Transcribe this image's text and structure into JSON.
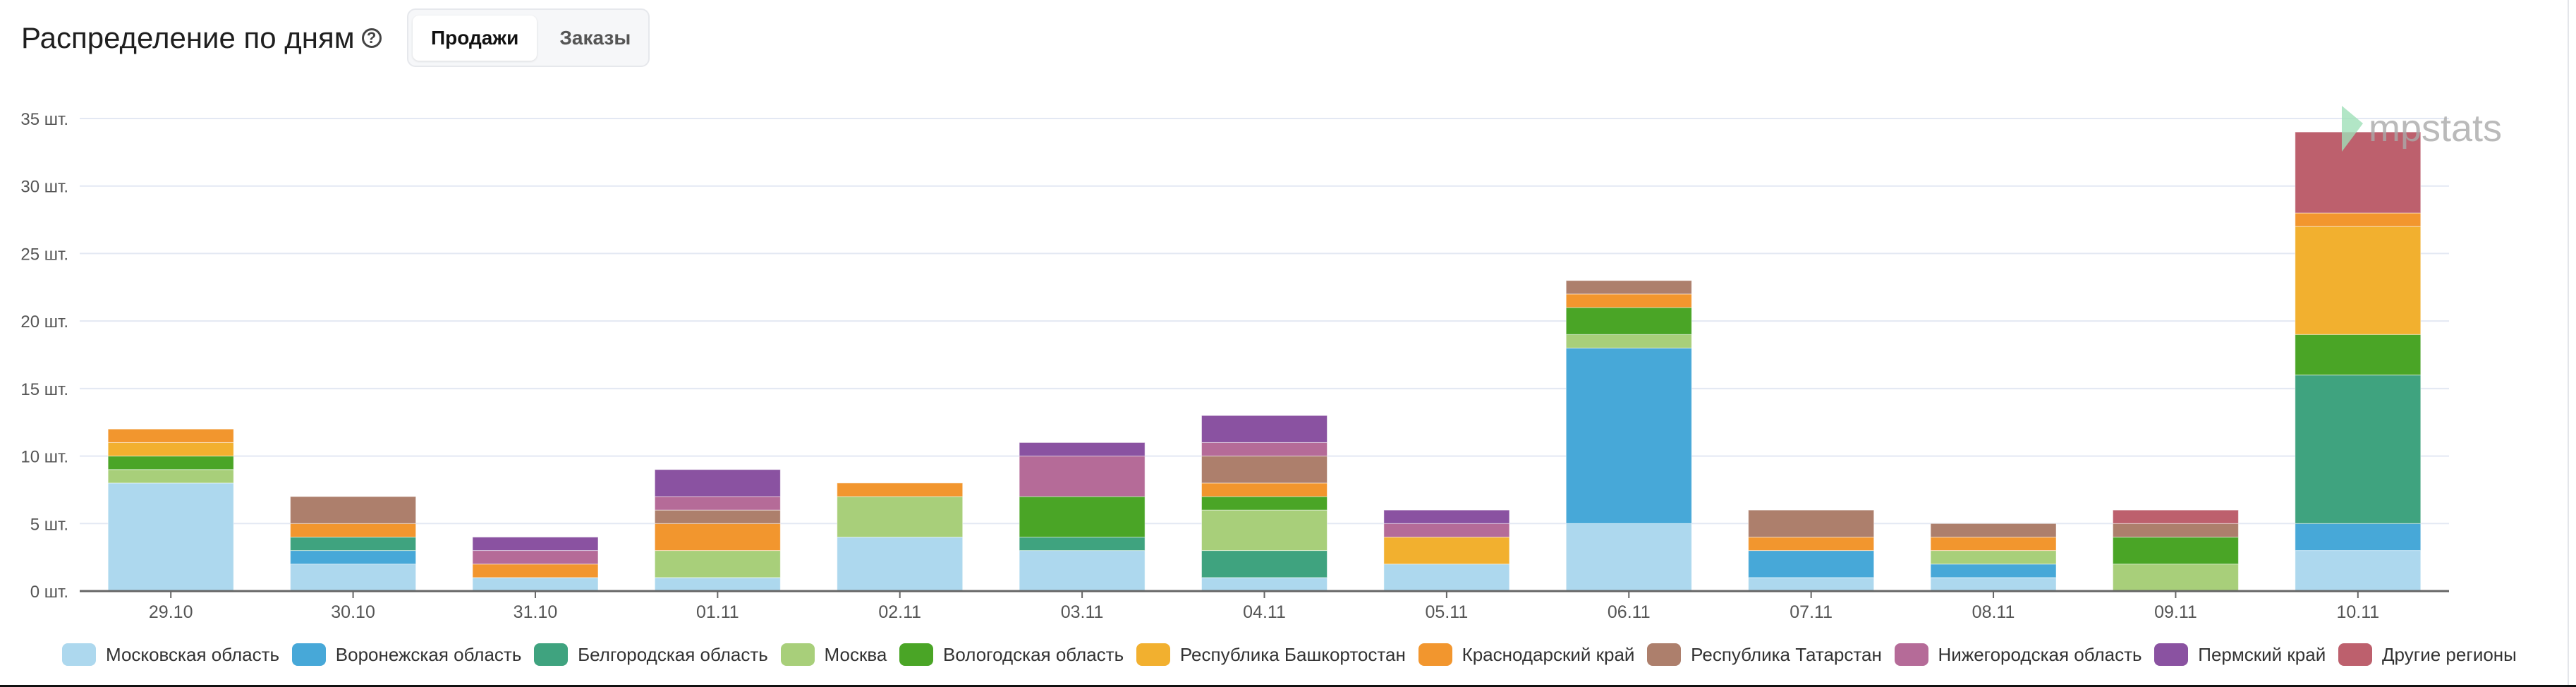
{
  "header": {
    "title": "Распределение по дням",
    "help_icon": "question-circle-icon"
  },
  "tabs": [
    {
      "label": "Продажи",
      "active": true
    },
    {
      "label": "Заказы",
      "active": false
    }
  ],
  "watermark": "mpstats",
  "chart_data": {
    "type": "bar",
    "stacked": true,
    "ylim": [
      0,
      35
    ],
    "yticks": [
      "0 шт.",
      "5 шт.",
      "10 шт.",
      "15 шт.",
      "20 шт.",
      "25 шт.",
      "30 шт.",
      "35 шт."
    ],
    "ytick_values": [
      0,
      5,
      10,
      15,
      20,
      25,
      30,
      35
    ],
    "grid": true,
    "legend_position": "bottom",
    "categories": [
      "29.10",
      "30.10",
      "31.10",
      "01.11",
      "02.11",
      "03.11",
      "04.11",
      "05.11",
      "06.11",
      "07.11",
      "08.11",
      "09.11",
      "10.11"
    ],
    "series": [
      {
        "name": "Московская область",
        "color": "#add8ee",
        "values": [
          8,
          2,
          1,
          1,
          4,
          3,
          1,
          2,
          5,
          1,
          1,
          0,
          3
        ]
      },
      {
        "name": "Воронежская область",
        "color": "#47a8d8",
        "values": [
          0,
          1,
          0,
          0,
          0,
          0,
          0,
          0,
          13,
          2,
          1,
          0,
          2
        ]
      },
      {
        "name": "Белгородская область",
        "color": "#3fa37f",
        "values": [
          0,
          1,
          0,
          0,
          0,
          1,
          2,
          0,
          0,
          0,
          0,
          0,
          11
        ]
      },
      {
        "name": "Москва",
        "color": "#a8cf7a",
        "values": [
          1,
          0,
          0,
          2,
          3,
          0,
          3,
          0,
          1,
          0,
          1,
          2,
          0
        ]
      },
      {
        "name": "Вологодская область",
        "color": "#4aa526",
        "values": [
          1,
          0,
          0,
          0,
          0,
          3,
          1,
          0,
          2,
          0,
          0,
          2,
          3
        ]
      },
      {
        "name": "Республика Башкортостан",
        "color": "#f2b02f",
        "values": [
          1,
          0,
          0,
          0,
          0,
          0,
          0,
          2,
          0,
          0,
          0,
          0,
          8
        ]
      },
      {
        "name": "Краснодарский край",
        "color": "#f2962e",
        "values": [
          1,
          1,
          1,
          2,
          1,
          0,
          1,
          0,
          1,
          1,
          1,
          0,
          1
        ]
      },
      {
        "name": "Республика Татарстан",
        "color": "#ad7f6c",
        "values": [
          0,
          2,
          0,
          1,
          0,
          0,
          2,
          0,
          1,
          2,
          1,
          1,
          0
        ]
      },
      {
        "name": "Нижегородская область",
        "color": "#b56b98",
        "values": [
          0,
          0,
          1,
          1,
          0,
          3,
          1,
          1,
          0,
          0,
          0,
          0,
          0
        ]
      },
      {
        "name": "Пермский край",
        "color": "#8a52a1",
        "values": [
          0,
          0,
          1,
          2,
          0,
          1,
          2,
          1,
          0,
          0,
          0,
          0,
          0
        ]
      },
      {
        "name": "Другие регионы",
        "color": "#bd606d",
        "values": [
          0,
          0,
          0,
          0,
          0,
          0,
          0,
          0,
          0,
          0,
          0,
          1,
          6
        ]
      }
    ]
  }
}
